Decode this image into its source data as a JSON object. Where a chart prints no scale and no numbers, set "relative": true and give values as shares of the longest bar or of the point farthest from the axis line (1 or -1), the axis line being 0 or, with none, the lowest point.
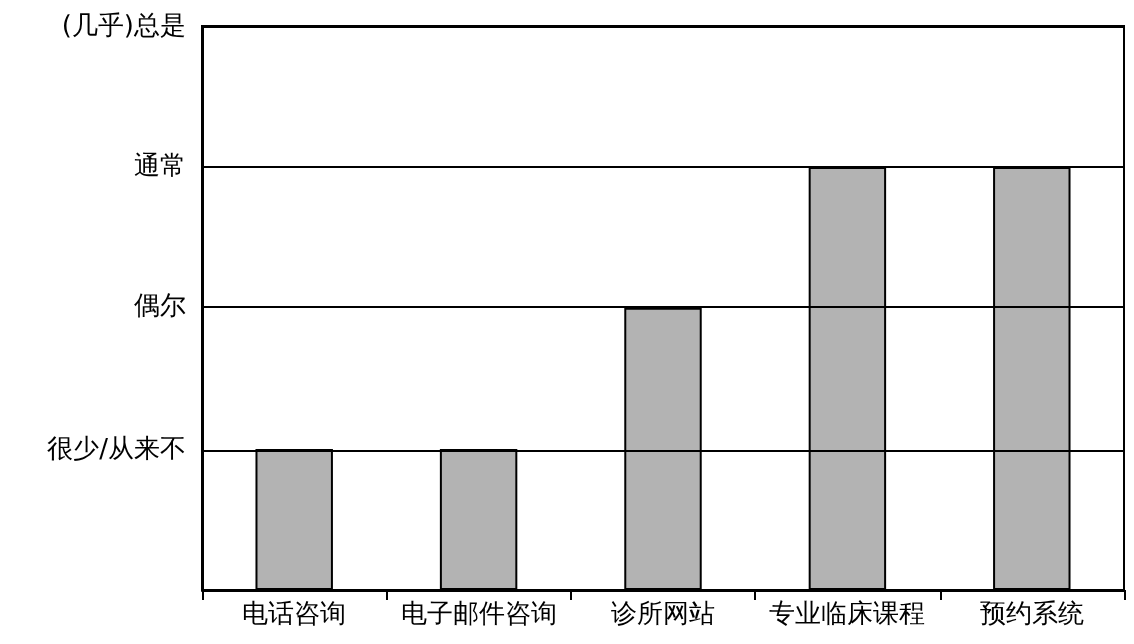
{
  "chart_data": {
    "type": "bar",
    "categories": [
      "电话咨询",
      "电子邮件咨询",
      "诊所网站",
      "专业临床课程",
      "预约系统"
    ],
    "values": [
      0.333,
      0.333,
      0.667,
      1,
      1
    ],
    "color": "#b3b3b3",
    "relative": true,
    "ref_lines": [
      {
        "axis": "y",
        "value": 0.333,
        "label": "很少/从来不"
      },
      {
        "axis": "y",
        "value": 0.667,
        "label": "偶尔"
      },
      {
        "axis": "y",
        "value": 1,
        "label": "通常"
      },
      {
        "axis": "y",
        "value": 1.333,
        "label": "(几乎)总是"
      }
    ]
  }
}
